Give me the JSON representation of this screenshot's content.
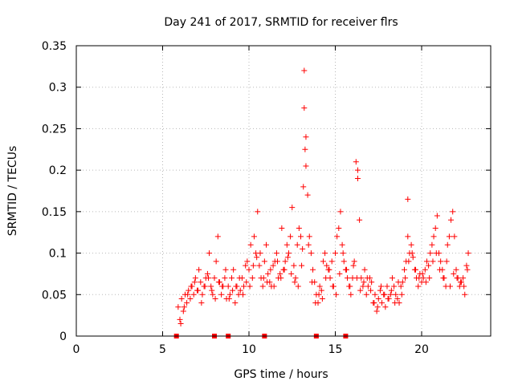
{
  "chart_data": {
    "type": "scatter",
    "title": "Day 241 of 2017, SRMTID for receiver flrs",
    "xlabel": "GPS time / hours",
    "ylabel": "SRMTID / TECUs",
    "xlim": [
      0,
      24
    ],
    "ylim": [
      0,
      0.35
    ],
    "x_ticks": [
      0,
      5,
      10,
      15,
      20
    ],
    "y_ticks": [
      0,
      0.05,
      0.1,
      0.15,
      0.2,
      0.25,
      0.3,
      0.35
    ],
    "x_tick_labels": [
      "0",
      "5",
      "10",
      "15",
      "20"
    ],
    "y_tick_labels": [
      "0",
      "0.05",
      "0.1",
      "0.15",
      "0.2",
      "0.25",
      "0.3",
      "0.35"
    ],
    "grid": true,
    "color": "#ff0000",
    "marker": "plus",
    "series": [
      {
        "x": [
          5.9,
          6.0,
          6.1,
          6.2,
          6.3,
          6.4,
          6.5,
          6.6,
          6.7,
          6.8,
          6.9,
          7.0,
          7.1,
          7.2,
          7.3,
          7.4,
          7.5,
          7.6,
          7.7,
          7.8,
          7.9,
          8.0,
          8.1,
          8.2,
          8.3,
          8.4,
          8.5,
          8.6,
          8.7,
          8.8,
          8.9,
          9.0,
          9.1,
          9.2,
          9.3,
          9.4,
          9.5,
          9.6,
          9.7,
          9.8,
          9.9,
          10.0,
          10.1,
          10.2,
          10.3,
          10.4,
          10.5,
          10.6,
          10.7,
          10.8,
          10.9,
          11.0,
          11.1,
          11.2,
          11.3,
          11.4,
          11.5,
          11.6,
          11.7,
          11.8,
          11.9,
          12.0,
          12.1,
          12.2,
          12.3,
          12.4,
          12.5,
          12.6,
          12.7,
          12.8,
          12.9,
          13.0,
          13.1,
          13.15,
          13.2,
          13.2,
          13.25,
          13.3,
          13.3,
          13.4,
          13.5,
          13.6,
          13.7,
          13.8,
          13.9,
          14.0,
          14.1,
          14.2,
          14.3,
          14.4,
          14.5,
          14.6,
          14.7,
          14.8,
          14.9,
          15.0,
          15.1,
          15.2,
          15.3,
          15.4,
          15.5,
          15.6,
          15.7,
          15.8,
          15.9,
          16.0,
          16.1,
          16.2,
          16.3,
          16.3,
          16.4,
          16.5,
          16.6,
          16.7,
          16.8,
          16.9,
          17.0,
          17.1,
          17.2,
          17.3,
          17.4,
          17.5,
          17.6,
          17.7,
          17.8,
          17.9,
          18.0,
          18.1,
          18.2,
          18.3,
          18.4,
          18.5,
          18.6,
          18.7,
          18.8,
          18.9,
          19.0,
          19.1,
          19.2,
          19.2,
          19.3,
          19.4,
          19.5,
          19.6,
          19.7,
          19.8,
          19.9,
          20.0,
          20.1,
          20.2,
          20.3,
          20.4,
          20.5,
          20.6,
          20.7,
          20.8,
          20.9,
          21.0,
          21.1,
          21.2,
          21.3,
          21.4,
          21.5,
          21.6,
          21.7,
          21.8,
          21.9,
          22.0,
          22.1,
          22.2,
          22.3,
          22.4,
          22.5,
          22.6,
          22.7,
          6.05,
          6.25,
          6.45,
          6.65,
          6.85,
          7.05,
          7.25,
          7.45,
          7.65,
          7.85,
          8.05,
          8.25,
          8.45,
          8.65,
          8.85,
          9.05,
          9.25,
          9.45,
          9.65,
          9.85,
          10.05,
          10.25,
          10.45,
          10.65,
          10.85,
          11.05,
          11.25,
          11.45,
          11.65,
          11.85,
          12.05,
          12.25,
          12.45,
          12.65,
          12.85,
          13.05,
          13.45,
          13.65,
          13.85,
          14.05,
          14.25,
          14.45,
          14.65,
          14.85,
          15.05,
          15.25,
          15.45,
          15.65,
          15.85,
          16.05,
          16.25,
          16.45,
          16.65,
          16.85,
          17.05,
          17.25,
          17.45,
          17.65,
          17.85,
          18.05,
          18.25,
          18.45,
          18.65,
          18.85,
          19.05,
          19.25,
          19.45,
          19.65,
          19.85,
          20.05,
          20.25,
          20.45,
          20.65,
          20.85,
          21.05,
          21.25,
          21.45,
          21.65,
          21.85,
          22.05,
          22.25,
          22.45,
          22.65
        ],
        "y": [
          0.035,
          0.02,
          0.045,
          0.03,
          0.05,
          0.04,
          0.055,
          0.045,
          0.06,
          0.05,
          0.07,
          0.055,
          0.08,
          0.065,
          0.05,
          0.06,
          0.07,
          0.075,
          0.1,
          0.06,
          0.05,
          0.07,
          0.09,
          0.12,
          0.065,
          0.05,
          0.06,
          0.07,
          0.045,
          0.06,
          0.05,
          0.07,
          0.08,
          0.04,
          0.06,
          0.05,
          0.055,
          0.07,
          0.06,
          0.085,
          0.09,
          0.08,
          0.11,
          0.07,
          0.12,
          0.1,
          0.15,
          0.085,
          0.07,
          0.06,
          0.09,
          0.11,
          0.075,
          0.065,
          0.06,
          0.085,
          0.09,
          0.1,
          0.07,
          0.075,
          0.13,
          0.08,
          0.09,
          0.11,
          0.1,
          0.12,
          0.155,
          0.085,
          0.07,
          0.11,
          0.13,
          0.12,
          0.105,
          0.18,
          0.32,
          0.275,
          0.225,
          0.24,
          0.205,
          0.17,
          0.12,
          0.1,
          0.08,
          0.065,
          0.05,
          0.04,
          0.06,
          0.055,
          0.09,
          0.1,
          0.085,
          0.08,
          0.07,
          0.09,
          0.06,
          0.1,
          0.12,
          0.13,
          0.15,
          0.11,
          0.09,
          0.08,
          0.07,
          0.06,
          0.05,
          0.07,
          0.09,
          0.21,
          0.2,
          0.19,
          0.14,
          0.07,
          0.06,
          0.08,
          0.05,
          0.06,
          0.07,
          0.065,
          0.04,
          0.05,
          0.03,
          0.045,
          0.055,
          0.04,
          0.05,
          0.035,
          0.06,
          0.045,
          0.05,
          0.07,
          0.06,
          0.05,
          0.045,
          0.04,
          0.06,
          0.065,
          0.08,
          0.09,
          0.12,
          0.165,
          0.1,
          0.11,
          0.095,
          0.08,
          0.07,
          0.06,
          0.075,
          0.065,
          0.07,
          0.08,
          0.09,
          0.085,
          0.1,
          0.11,
          0.12,
          0.13,
          0.145,
          0.1,
          0.09,
          0.08,
          0.07,
          0.06,
          0.11,
          0.12,
          0.14,
          0.15,
          0.12,
          0.08,
          0.07,
          0.06,
          0.065,
          0.07,
          0.05,
          0.085,
          0.1,
          0.015,
          0.035,
          0.05,
          0.06,
          0.065,
          0.055,
          0.04,
          0.06,
          0.07,
          0.055,
          0.045,
          0.065,
          0.06,
          0.08,
          0.045,
          0.055,
          0.06,
          0.07,
          0.05,
          0.065,
          0.06,
          0.085,
          0.095,
          0.1,
          0.07,
          0.065,
          0.08,
          0.06,
          0.09,
          0.07,
          0.08,
          0.095,
          0.075,
          0.065,
          0.06,
          0.085,
          0.11,
          0.065,
          0.04,
          0.05,
          0.045,
          0.07,
          0.08,
          0.06,
          0.05,
          0.075,
          0.1,
          0.08,
          0.06,
          0.085,
          0.07,
          0.055,
          0.065,
          0.07,
          0.055,
          0.04,
          0.035,
          0.06,
          0.05,
          0.045,
          0.055,
          0.04,
          0.065,
          0.05,
          0.07,
          0.09,
          0.1,
          0.08,
          0.07,
          0.075,
          0.065,
          0.07,
          0.09,
          0.1,
          0.08,
          0.07,
          0.09,
          0.06,
          0.075,
          0.07,
          0.065,
          0.06,
          0.08
        ]
      }
    ],
    "baseline_markers_x": [
      5.8,
      8.0,
      8.8,
      10.9,
      13.9,
      15.6
    ]
  }
}
